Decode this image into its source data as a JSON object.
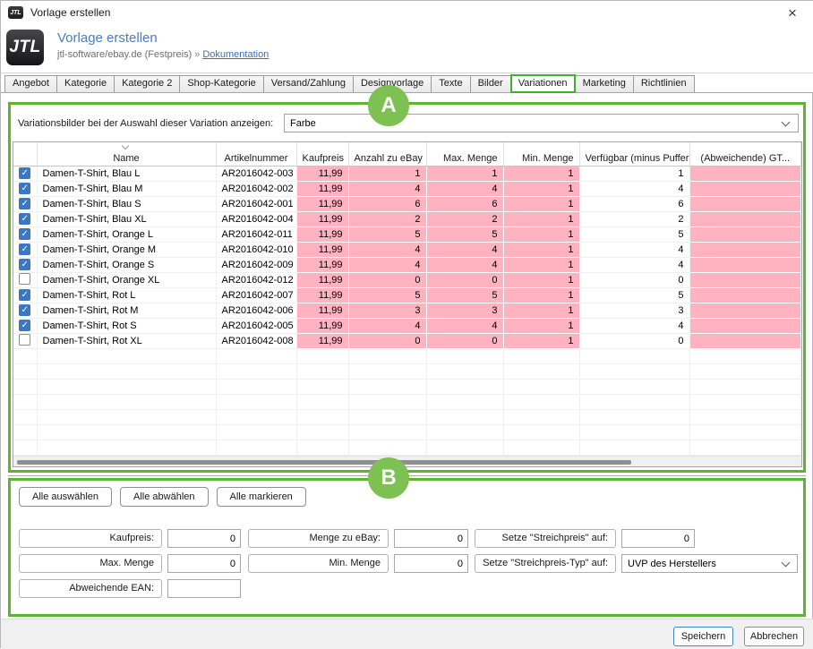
{
  "window": {
    "title": "Vorlage erstellen",
    "icon_text": "JTL",
    "close": "×"
  },
  "header": {
    "logo_text": "JTL",
    "title": "Vorlage erstellen",
    "subtitle": "jtl-software/ebay.de (Festpreis)",
    "separator": "»",
    "doc_link": "Dokumentation"
  },
  "tabs": [
    {
      "label": "Angebot",
      "active": false
    },
    {
      "label": "Kategorie",
      "active": false
    },
    {
      "label": "Kategorie 2",
      "active": false
    },
    {
      "label": "Shop-Kategorie",
      "active": false
    },
    {
      "label": "Versand/Zahlung",
      "active": false
    },
    {
      "label": "Designvorlage",
      "active": false
    },
    {
      "label": "Texte",
      "active": false
    },
    {
      "label": "Bilder",
      "active": false
    },
    {
      "label": "Variationen",
      "active": true
    },
    {
      "label": "Marketing",
      "active": false
    },
    {
      "label": "Richtlinien",
      "active": false
    }
  ],
  "section_a": {
    "annotation": "A",
    "filter_label": "Variationsbilder bei der Auswahl dieser Variation anzeigen:",
    "filter_value": "Farbe"
  },
  "table": {
    "columns": [
      "",
      "Name",
      "Artikelnummer",
      "Kaufpreis",
      "Anzahl zu eBay",
      "Max. Menge",
      "Min. Menge",
      "Verfügbar (minus Puffer)",
      "(Abweichende) GT..."
    ],
    "rows": [
      {
        "checked": true,
        "name": "Damen-T-Shirt, Blau L",
        "sku": "AR2016042-003",
        "price": "11,99",
        "ebay_qty": "1",
        "max_qty": "1",
        "min_qty": "1",
        "available": "1",
        "gtin": ""
      },
      {
        "checked": true,
        "name": "Damen-T-Shirt, Blau M",
        "sku": "AR2016042-002",
        "price": "11,99",
        "ebay_qty": "4",
        "max_qty": "4",
        "min_qty": "1",
        "available": "4",
        "gtin": ""
      },
      {
        "checked": true,
        "name": "Damen-T-Shirt, Blau S",
        "sku": "AR2016042-001",
        "price": "11,99",
        "ebay_qty": "6",
        "max_qty": "6",
        "min_qty": "1",
        "available": "6",
        "gtin": ""
      },
      {
        "checked": true,
        "name": "Damen-T-Shirt, Blau XL",
        "sku": "AR2016042-004",
        "price": "11,99",
        "ebay_qty": "2",
        "max_qty": "2",
        "min_qty": "1",
        "available": "2",
        "gtin": ""
      },
      {
        "checked": true,
        "name": "Damen-T-Shirt, Orange L",
        "sku": "AR2016042-011",
        "price": "11,99",
        "ebay_qty": "5",
        "max_qty": "5",
        "min_qty": "1",
        "available": "5",
        "gtin": ""
      },
      {
        "checked": true,
        "name": "Damen-T-Shirt, Orange M",
        "sku": "AR2016042-010",
        "price": "11,99",
        "ebay_qty": "4",
        "max_qty": "4",
        "min_qty": "1",
        "available": "4",
        "gtin": ""
      },
      {
        "checked": true,
        "name": "Damen-T-Shirt, Orange S",
        "sku": "AR2016042-009",
        "price": "11,99",
        "ebay_qty": "4",
        "max_qty": "4",
        "min_qty": "1",
        "available": "4",
        "gtin": ""
      },
      {
        "checked": false,
        "name": "Damen-T-Shirt, Orange XL",
        "sku": "AR2016042-012",
        "price": "11,99",
        "ebay_qty": "0",
        "max_qty": "0",
        "min_qty": "1",
        "available": "0",
        "gtin": ""
      },
      {
        "checked": true,
        "name": "Damen-T-Shirt, Rot L",
        "sku": "AR2016042-007",
        "price": "11,99",
        "ebay_qty": "5",
        "max_qty": "5",
        "min_qty": "1",
        "available": "5",
        "gtin": ""
      },
      {
        "checked": true,
        "name": "Damen-T-Shirt, Rot M",
        "sku": "AR2016042-006",
        "price": "11,99",
        "ebay_qty": "3",
        "max_qty": "3",
        "min_qty": "1",
        "available": "3",
        "gtin": ""
      },
      {
        "checked": true,
        "name": "Damen-T-Shirt, Rot S",
        "sku": "AR2016042-005",
        "price": "11,99",
        "ebay_qty": "4",
        "max_qty": "4",
        "min_qty": "1",
        "available": "4",
        "gtin": ""
      },
      {
        "checked": false,
        "name": "Damen-T-Shirt, Rot XL",
        "sku": "AR2016042-008",
        "price": "11,99",
        "ebay_qty": "0",
        "max_qty": "0",
        "min_qty": "1",
        "available": "0",
        "gtin": ""
      }
    ]
  },
  "section_b": {
    "annotation": "B",
    "buttons": [
      "Alle auswählen",
      "Alle abwählen",
      "Alle markieren"
    ],
    "fields": [
      {
        "label": "Kaufpreis:",
        "value": "0"
      },
      {
        "label": "Menge zu eBay:",
        "value": "0"
      },
      {
        "label": "Setze \"Streichpreis\" auf:",
        "value": "0"
      },
      {
        "label": "Max. Menge",
        "value": "0"
      },
      {
        "label": "Min. Menge",
        "value": "0"
      },
      {
        "label": "Setze \"Streichpreis-Typ\" auf:",
        "value": "UVP des Herstellers"
      },
      {
        "label": "Abweichende EAN:",
        "value": ""
      }
    ]
  },
  "footer": {
    "save": "Speichern",
    "cancel": "Abbrechen"
  },
  "colors": {
    "annotation_green": "#5cb531",
    "annotation_circle": "#7cc152",
    "highlight_pink": "#ffb2bf",
    "accent_blue": "#4a7ebd",
    "checkbox_blue": "#3a77c4"
  }
}
